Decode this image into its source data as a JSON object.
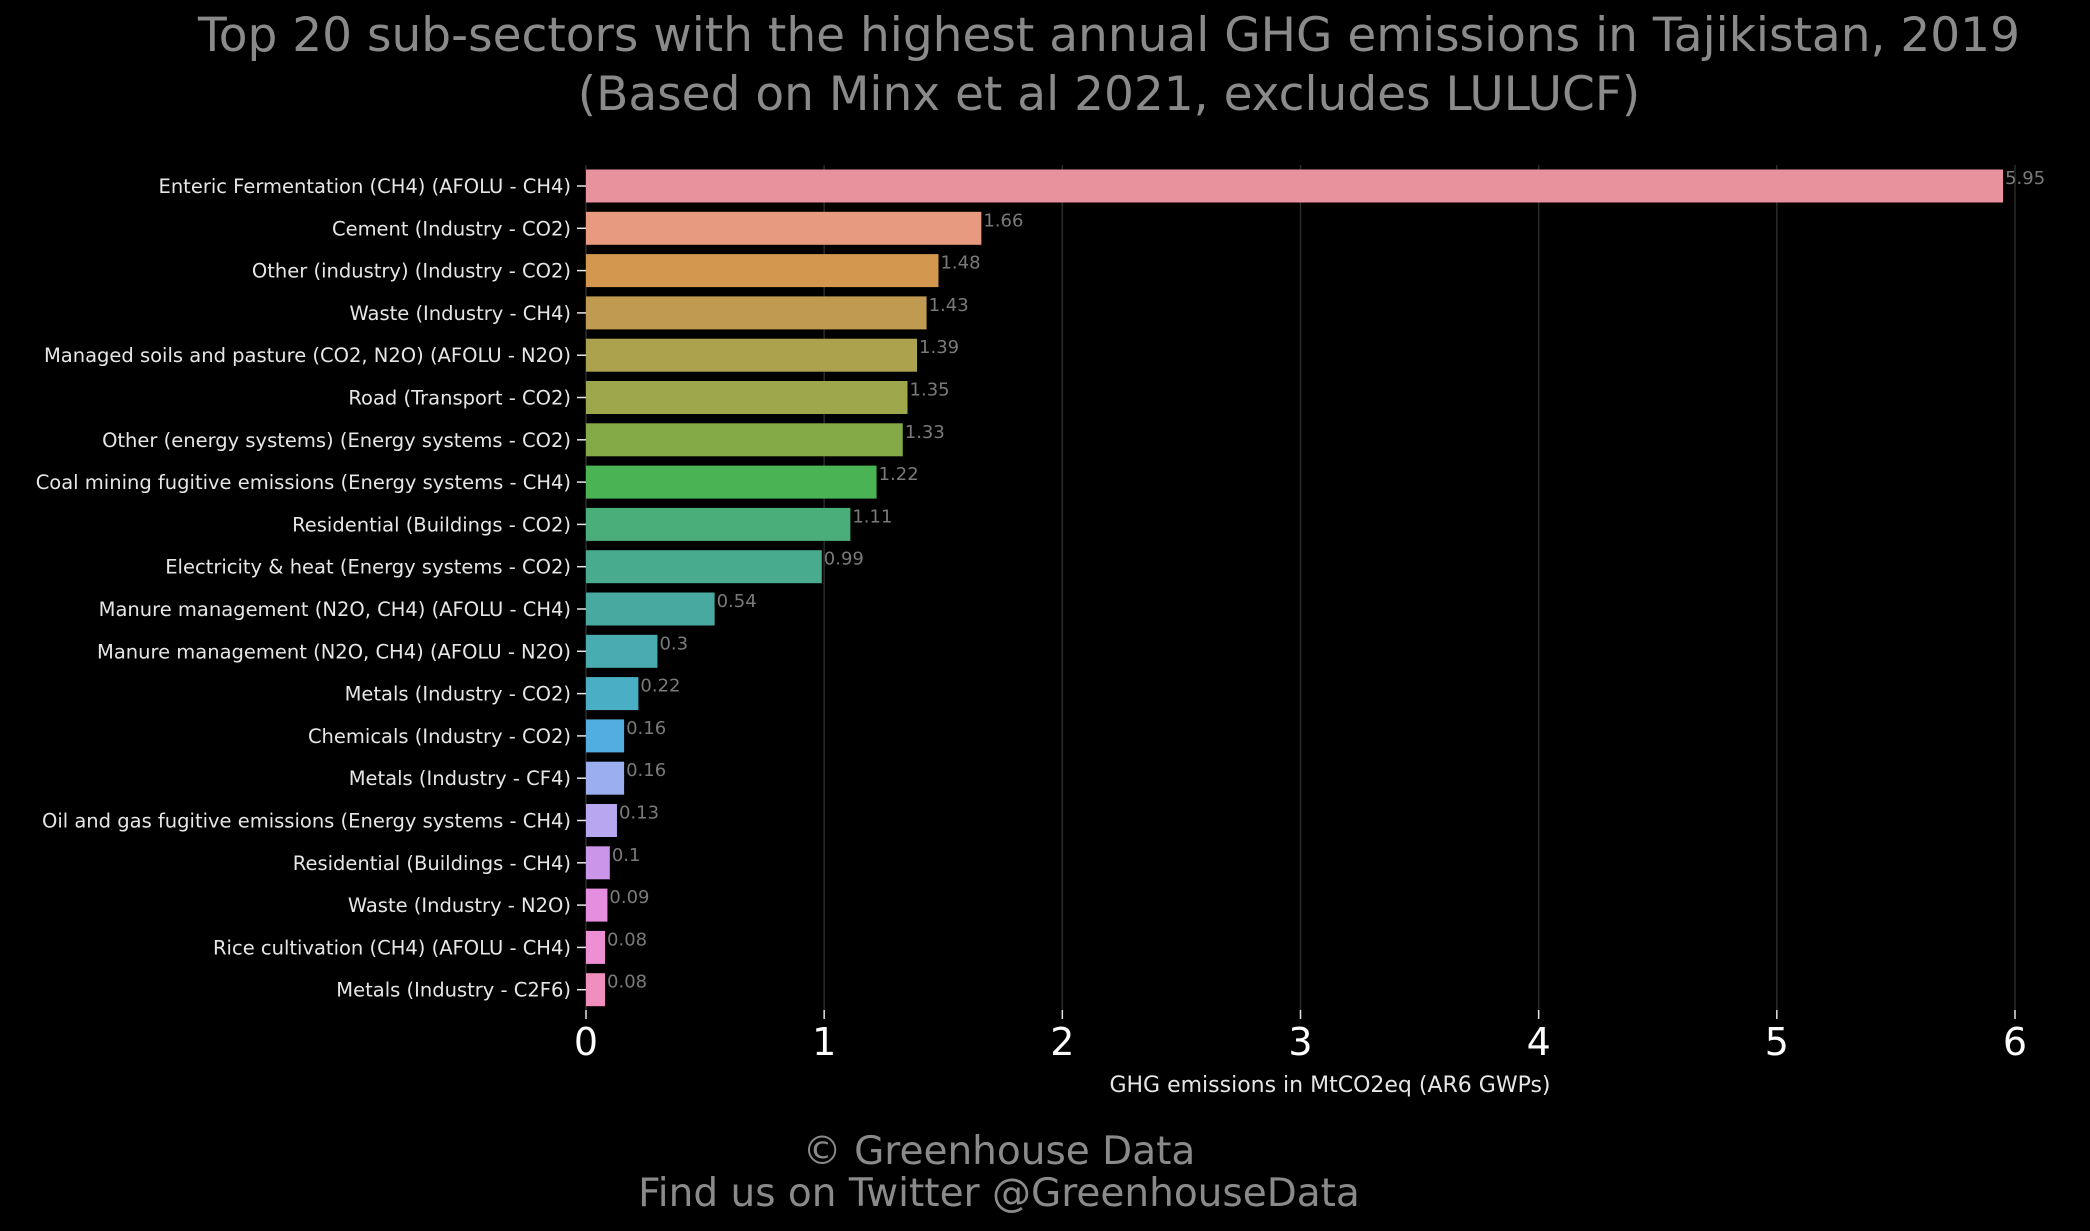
{
  "chart_data": {
    "type": "bar",
    "orientation": "horizontal",
    "title": "Top 20 sub-sectors with the highest annual GHG emissions in Tajikistan, 2019",
    "subtitle": "(Based on Minx et al 2021, excludes LULUCF)",
    "xlabel": "GHG emissions in MtCO2eq (AR6 GWPs)",
    "ylabel": "",
    "xlim": [
      0,
      6
    ],
    "x_ticks": [
      "0",
      "1",
      "2",
      "3",
      "4",
      "5",
      "6"
    ],
    "grid": "vertical",
    "categories": [
      "Enteric Fermentation (CH4) (AFOLU - CH4)",
      "Cement (Industry - CO2)",
      "Other (industry) (Industry - CO2)",
      "Waste (Industry - CH4)",
      "Managed soils and pasture (CO2, N2O) (AFOLU - N2O)",
      "Road (Transport - CO2)",
      "Other (energy systems) (Energy systems - CO2)",
      "Coal mining fugitive emissions (Energy systems - CH4)",
      "Residential (Buildings - CO2)",
      "Electricity & heat (Energy systems - CO2)",
      "Manure management (N2O, CH4) (AFOLU - CH4)",
      "Manure management (N2O, CH4) (AFOLU - N2O)",
      "Metals (Industry - CO2)",
      "Chemicals (Industry - CO2)",
      "Metals (Industry - CF4)",
      "Oil and gas fugitive emissions (Energy systems - CH4)",
      "Residential (Buildings - CH4)",
      "Waste (Industry - N2O)",
      "Rice cultivation (CH4) (AFOLU - CH4)",
      "Metals (Industry - C2F6)"
    ],
    "values": [
      5.95,
      1.66,
      1.48,
      1.43,
      1.39,
      1.35,
      1.33,
      1.22,
      1.11,
      0.99,
      0.54,
      0.3,
      0.22,
      0.16,
      0.16,
      0.13,
      0.1,
      0.09,
      0.08,
      0.08
    ],
    "value_labels": [
      "5.95",
      "1.66",
      "1.48",
      "1.43",
      "1.39",
      "1.35",
      "1.33",
      "1.22",
      "1.11",
      "0.99",
      "0.54",
      "0.3",
      "0.22",
      "0.16",
      "0.16",
      "0.13",
      "0.1",
      "0.09",
      "0.08",
      "0.08"
    ],
    "colors": [
      "#e8929d",
      "#e89a80",
      "#d4974f",
      "#c09a50",
      "#aca24e",
      "#9ea74c",
      "#84aa48",
      "#4ab454",
      "#4aae7b",
      "#48ab8e",
      "#48a9a0",
      "#49acb1",
      "#4aaec4",
      "#53aee0",
      "#9aaef0",
      "#b8a6f0",
      "#cb95ea",
      "#e58ee0",
      "#ee8fd4",
      "#f08fbd"
    ]
  },
  "footer": {
    "copyright": "© Greenhouse Data",
    "twitter": "Find us on Twitter @GreenhouseData"
  }
}
